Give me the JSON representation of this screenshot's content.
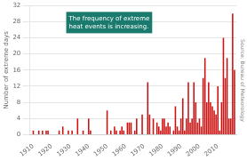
{
  "chart_data": {
    "type": "bar",
    "ylabel": "Number of extreme days",
    "annotation": "The frequency of extreme\nheat events is increasing.",
    "source": "Source: Bureau of Meteorology",
    "x": [
      1910,
      1911,
      1912,
      1913,
      1914,
      1915,
      1916,
      1917,
      1918,
      1919,
      1920,
      1921,
      1922,
      1923,
      1924,
      1925,
      1926,
      1927,
      1928,
      1929,
      1930,
      1931,
      1932,
      1933,
      1934,
      1935,
      1936,
      1937,
      1938,
      1939,
      1940,
      1941,
      1942,
      1943,
      1944,
      1945,
      1946,
      1947,
      1948,
      1949,
      1950,
      1951,
      1952,
      1953,
      1954,
      1955,
      1956,
      1957,
      1958,
      1959,
      1960,
      1961,
      1962,
      1963,
      1964,
      1965,
      1966,
      1967,
      1968,
      1969,
      1970,
      1971,
      1972,
      1973,
      1974,
      1975,
      1976,
      1977,
      1978,
      1979,
      1980,
      1981,
      1982,
      1983,
      1984,
      1985,
      1986,
      1987,
      1988,
      1989,
      1990,
      1991,
      1992,
      1993,
      1994,
      1995,
      1996,
      1997,
      1998,
      1999,
      2000,
      2001,
      2002,
      2003,
      2004,
      2005,
      2006,
      2007,
      2008,
      2009,
      2010,
      2011,
      2012,
      2013,
      2014,
      2015,
      2016,
      2017,
      2018,
      2019
    ],
    "values": [
      1,
      0,
      0,
      1,
      0,
      1,
      0,
      1,
      1,
      0,
      0,
      0,
      0,
      0,
      1,
      0,
      2,
      0,
      0,
      1,
      0,
      1,
      0,
      0,
      4,
      0,
      0,
      1,
      0,
      0,
      4,
      1,
      0,
      0,
      0,
      0,
      0,
      0,
      0,
      0,
      6,
      0,
      1,
      0,
      2,
      1,
      0,
      1,
      2,
      1,
      0,
      3,
      3,
      3,
      0,
      1,
      4,
      0,
      0,
      5,
      0,
      0,
      13,
      5,
      0,
      4,
      0,
      3,
      2,
      1,
      4,
      4,
      2,
      3,
      2,
      0,
      1,
      7,
      2,
      1,
      4,
      9,
      1,
      4,
      13,
      3,
      4,
      13,
      8,
      3,
      4,
      2,
      14,
      19,
      8,
      13,
      8,
      7,
      6,
      5,
      12,
      1,
      8,
      24,
      14,
      19,
      4,
      4,
      30,
      16
    ],
    "color": "#cc1111",
    "xlim": [
      1908,
      2020
    ],
    "xticks": [
      1910,
      1920,
      1930,
      1940,
      1950,
      1960,
      1970,
      1980,
      1990,
      2000,
      2010
    ],
    "ylim": [
      0,
      32
    ],
    "yticks": [
      0,
      4,
      8,
      12,
      16,
      20,
      24,
      28,
      32
    ],
    "grid": true
  }
}
